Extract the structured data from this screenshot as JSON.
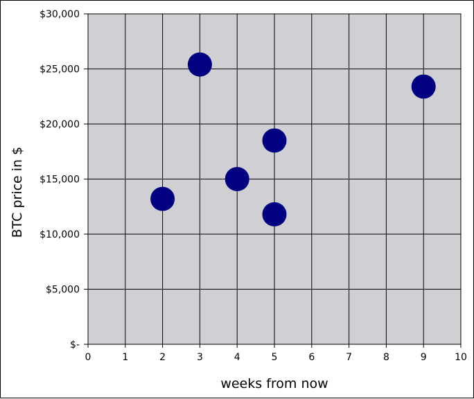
{
  "chart_data": {
    "type": "scatter",
    "title": "",
    "xlabel": "weeks from now",
    "ylabel": "BTC price in $",
    "xlim": [
      0,
      10
    ],
    "ylim": [
      0,
      30000
    ],
    "x_ticks": [
      "0",
      "1",
      "2",
      "3",
      "4",
      "5",
      "6",
      "7",
      "8",
      "9",
      "10"
    ],
    "y_ticks": [
      "$-",
      "$5,000",
      "$10,000",
      "$15,000",
      "$20,000",
      "$25,000",
      "$30,000"
    ],
    "grid": true,
    "legend": "none",
    "colors": {
      "plot_bg": "#d0d0d4",
      "marker": "#000080",
      "grid": "#000000"
    },
    "points": [
      {
        "x": 2,
        "y": 13200
      },
      {
        "x": 3,
        "y": 25400
      },
      {
        "x": 4,
        "y": 15000
      },
      {
        "x": 5,
        "y": 18500
      },
      {
        "x": 5,
        "y": 11800
      },
      {
        "x": 9,
        "y": 23400
      }
    ]
  }
}
